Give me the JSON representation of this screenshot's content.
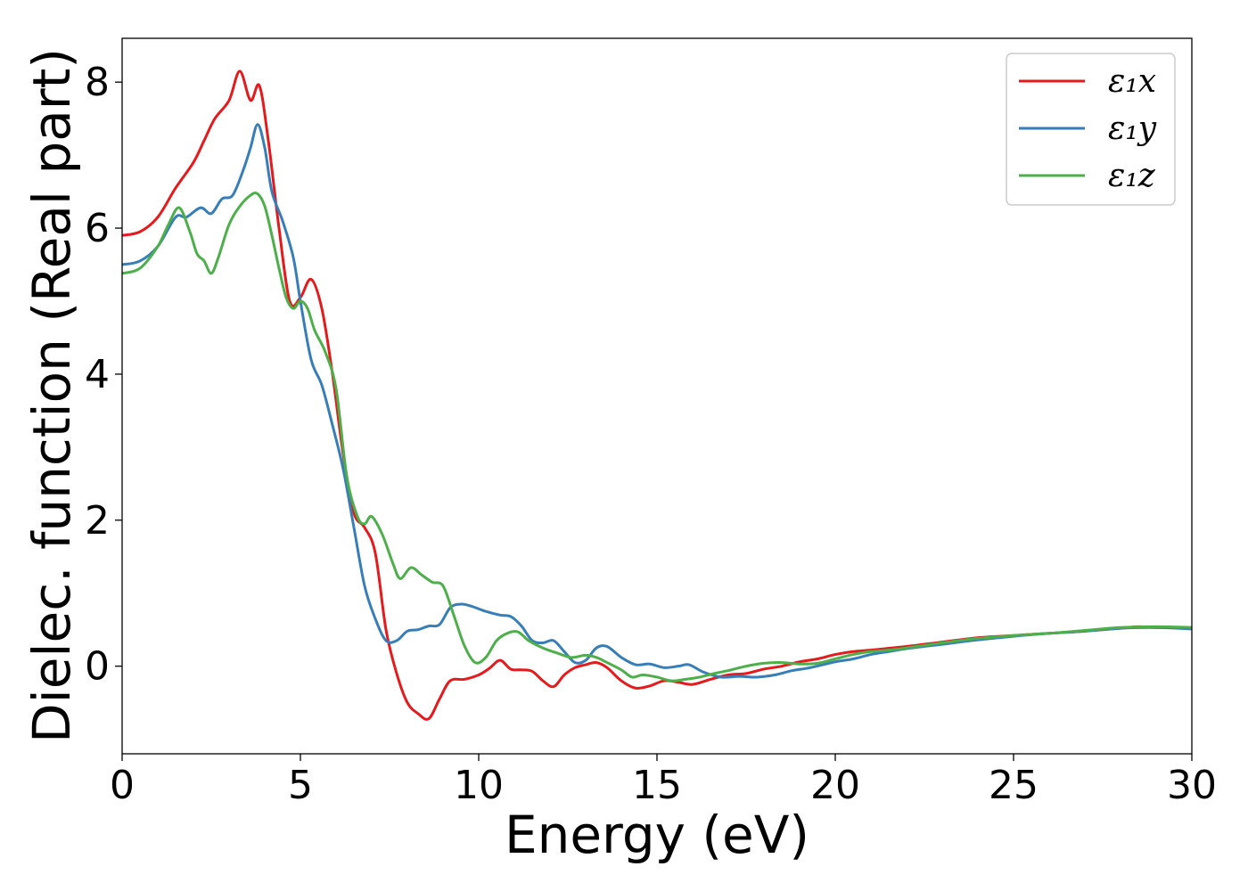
{
  "chart_data": {
    "type": "line",
    "xlabel": "Energy (eV)",
    "ylabel": "Dielec. function (Real part)",
    "xlim": [
      0,
      30
    ],
    "ylim": [
      -1.2,
      8.6
    ],
    "xticks": [
      0,
      5,
      10,
      15,
      20,
      25,
      30
    ],
    "yticks": [
      0,
      2,
      4,
      6,
      8
    ],
    "grid": false,
    "legend_position": "top-right",
    "series": [
      {
        "name": "ε₁x",
        "color": "#e41a1c",
        "points": [
          [
            0,
            5.9
          ],
          [
            0.5,
            5.95
          ],
          [
            1.0,
            6.15
          ],
          [
            1.5,
            6.55
          ],
          [
            2.0,
            6.9
          ],
          [
            2.3,
            7.2
          ],
          [
            2.6,
            7.5
          ],
          [
            3.0,
            7.75
          ],
          [
            3.3,
            8.15
          ],
          [
            3.6,
            7.75
          ],
          [
            3.85,
            7.95
          ],
          [
            4.1,
            7.2
          ],
          [
            4.4,
            6.0
          ],
          [
            4.7,
            5.0
          ],
          [
            5.0,
            5.05
          ],
          [
            5.3,
            5.3
          ],
          [
            5.6,
            4.9
          ],
          [
            5.9,
            4.0
          ],
          [
            6.2,
            2.9
          ],
          [
            6.5,
            2.1
          ],
          [
            6.8,
            1.9
          ],
          [
            7.1,
            1.55
          ],
          [
            7.4,
            0.5
          ],
          [
            7.7,
            -0.1
          ],
          [
            8.0,
            -0.5
          ],
          [
            8.3,
            -0.65
          ],
          [
            8.6,
            -0.72
          ],
          [
            8.9,
            -0.45
          ],
          [
            9.2,
            -0.2
          ],
          [
            9.6,
            -0.18
          ],
          [
            10.0,
            -0.12
          ],
          [
            10.3,
            -0.03
          ],
          [
            10.6,
            0.08
          ],
          [
            10.9,
            -0.04
          ],
          [
            11.2,
            -0.05
          ],
          [
            11.5,
            -0.07
          ],
          [
            11.8,
            -0.2
          ],
          [
            12.1,
            -0.28
          ],
          [
            12.4,
            -0.12
          ],
          [
            12.7,
            -0.02
          ],
          [
            13.0,
            0.02
          ],
          [
            13.3,
            0.05
          ],
          [
            13.6,
            -0.02
          ],
          [
            14.0,
            -0.2
          ],
          [
            14.4,
            -0.3
          ],
          [
            14.8,
            -0.27
          ],
          [
            15.2,
            -0.2
          ],
          [
            15.6,
            -0.22
          ],
          [
            16.0,
            -0.25
          ],
          [
            16.5,
            -0.18
          ],
          [
            17.0,
            -0.12
          ],
          [
            17.5,
            -0.1
          ],
          [
            18.0,
            -0.04
          ],
          [
            18.5,
            0.0
          ],
          [
            19.0,
            0.06
          ],
          [
            19.5,
            0.1
          ],
          [
            20.0,
            0.16
          ],
          [
            20.5,
            0.2
          ],
          [
            21.0,
            0.22
          ],
          [
            22.0,
            0.27
          ],
          [
            23.0,
            0.33
          ],
          [
            24.0,
            0.39
          ],
          [
            25.0,
            0.42
          ],
          [
            26.0,
            0.45
          ],
          [
            27.0,
            0.48
          ],
          [
            28.0,
            0.52
          ],
          [
            28.5,
            0.54
          ],
          [
            29.0,
            0.53
          ],
          [
            30.0,
            0.52
          ]
        ]
      },
      {
        "name": "ε₁y",
        "color": "#377eb8",
        "points": [
          [
            0,
            5.5
          ],
          [
            0.5,
            5.55
          ],
          [
            1.0,
            5.75
          ],
          [
            1.5,
            6.15
          ],
          [
            1.8,
            6.15
          ],
          [
            2.2,
            6.28
          ],
          [
            2.5,
            6.2
          ],
          [
            2.8,
            6.4
          ],
          [
            3.1,
            6.45
          ],
          [
            3.4,
            6.8
          ],
          [
            3.6,
            7.1
          ],
          [
            3.8,
            7.42
          ],
          [
            4.0,
            7.1
          ],
          [
            4.2,
            6.5
          ],
          [
            4.5,
            6.1
          ],
          [
            4.8,
            5.6
          ],
          [
            5.0,
            5.0
          ],
          [
            5.3,
            4.2
          ],
          [
            5.6,
            3.85
          ],
          [
            5.9,
            3.3
          ],
          [
            6.2,
            2.7
          ],
          [
            6.5,
            1.9
          ],
          [
            6.8,
            1.1
          ],
          [
            7.1,
            0.65
          ],
          [
            7.4,
            0.35
          ],
          [
            7.7,
            0.35
          ],
          [
            8.0,
            0.48
          ],
          [
            8.3,
            0.5
          ],
          [
            8.6,
            0.55
          ],
          [
            8.9,
            0.57
          ],
          [
            9.2,
            0.8
          ],
          [
            9.5,
            0.85
          ],
          [
            9.8,
            0.82
          ],
          [
            10.2,
            0.75
          ],
          [
            10.6,
            0.7
          ],
          [
            10.9,
            0.68
          ],
          [
            11.2,
            0.55
          ],
          [
            11.5,
            0.35
          ],
          [
            11.8,
            0.32
          ],
          [
            12.1,
            0.35
          ],
          [
            12.4,
            0.2
          ],
          [
            12.7,
            0.05
          ],
          [
            13.0,
            0.08
          ],
          [
            13.3,
            0.25
          ],
          [
            13.6,
            0.27
          ],
          [
            14.0,
            0.12
          ],
          [
            14.4,
            0.02
          ],
          [
            14.8,
            0.03
          ],
          [
            15.2,
            -0.02
          ],
          [
            15.6,
            0.0
          ],
          [
            15.9,
            0.02
          ],
          [
            16.3,
            -0.08
          ],
          [
            16.8,
            -0.15
          ],
          [
            17.3,
            -0.14
          ],
          [
            17.8,
            -0.15
          ],
          [
            18.3,
            -0.12
          ],
          [
            18.8,
            -0.06
          ],
          [
            19.3,
            -0.02
          ],
          [
            20.0,
            0.06
          ],
          [
            20.5,
            0.1
          ],
          [
            21.0,
            0.16
          ],
          [
            21.5,
            0.2
          ],
          [
            22.0,
            0.24
          ],
          [
            23.0,
            0.3
          ],
          [
            24.0,
            0.36
          ],
          [
            25.0,
            0.41
          ],
          [
            26.0,
            0.45
          ],
          [
            27.0,
            0.48
          ],
          [
            28.0,
            0.52
          ],
          [
            29.0,
            0.53
          ],
          [
            30.0,
            0.51
          ]
        ]
      },
      {
        "name": "ε₁z",
        "color": "#4daf4a",
        "points": [
          [
            0,
            5.38
          ],
          [
            0.5,
            5.45
          ],
          [
            1.0,
            5.75
          ],
          [
            1.3,
            6.05
          ],
          [
            1.6,
            6.28
          ],
          [
            1.9,
            5.95
          ],
          [
            2.1,
            5.65
          ],
          [
            2.3,
            5.55
          ],
          [
            2.5,
            5.38
          ],
          [
            2.7,
            5.6
          ],
          [
            3.0,
            6.05
          ],
          [
            3.3,
            6.3
          ],
          [
            3.6,
            6.45
          ],
          [
            3.8,
            6.47
          ],
          [
            4.0,
            6.3
          ],
          [
            4.2,
            5.9
          ],
          [
            4.4,
            5.45
          ],
          [
            4.6,
            5.05
          ],
          [
            4.8,
            4.9
          ],
          [
            5.0,
            5.0
          ],
          [
            5.2,
            4.9
          ],
          [
            5.4,
            4.6
          ],
          [
            5.7,
            4.3
          ],
          [
            6.0,
            3.8
          ],
          [
            6.3,
            2.6
          ],
          [
            6.6,
            2.05
          ],
          [
            6.8,
            1.95
          ],
          [
            7.0,
            2.05
          ],
          [
            7.3,
            1.8
          ],
          [
            7.6,
            1.4
          ],
          [
            7.8,
            1.2
          ],
          [
            8.1,
            1.35
          ],
          [
            8.4,
            1.25
          ],
          [
            8.7,
            1.15
          ],
          [
            9.0,
            1.1
          ],
          [
            9.3,
            0.7
          ],
          [
            9.6,
            0.28
          ],
          [
            9.9,
            0.05
          ],
          [
            10.2,
            0.12
          ],
          [
            10.5,
            0.35
          ],
          [
            10.8,
            0.45
          ],
          [
            11.1,
            0.47
          ],
          [
            11.4,
            0.35
          ],
          [
            11.8,
            0.25
          ],
          [
            12.2,
            0.18
          ],
          [
            12.6,
            0.12
          ],
          [
            13.0,
            0.15
          ],
          [
            13.3,
            0.12
          ],
          [
            13.6,
            0.05
          ],
          [
            14.0,
            -0.05
          ],
          [
            14.3,
            -0.15
          ],
          [
            14.6,
            -0.12
          ],
          [
            15.0,
            -0.15
          ],
          [
            15.4,
            -0.2
          ],
          [
            15.8,
            -0.18
          ],
          [
            16.2,
            -0.15
          ],
          [
            16.6,
            -0.1
          ],
          [
            17.0,
            -0.06
          ],
          [
            17.5,
            0.0
          ],
          [
            18.0,
            0.04
          ],
          [
            18.5,
            0.05
          ],
          [
            19.0,
            0.03
          ],
          [
            19.5,
            0.04
          ],
          [
            20.0,
            0.1
          ],
          [
            20.5,
            0.16
          ],
          [
            21.0,
            0.2
          ],
          [
            21.5,
            0.22
          ],
          [
            22.0,
            0.25
          ],
          [
            23.0,
            0.32
          ],
          [
            24.0,
            0.38
          ],
          [
            25.0,
            0.42
          ],
          [
            26.0,
            0.45
          ],
          [
            27.0,
            0.49
          ],
          [
            28.0,
            0.53
          ],
          [
            29.0,
            0.54
          ],
          [
            30.0,
            0.53
          ]
        ]
      }
    ]
  }
}
